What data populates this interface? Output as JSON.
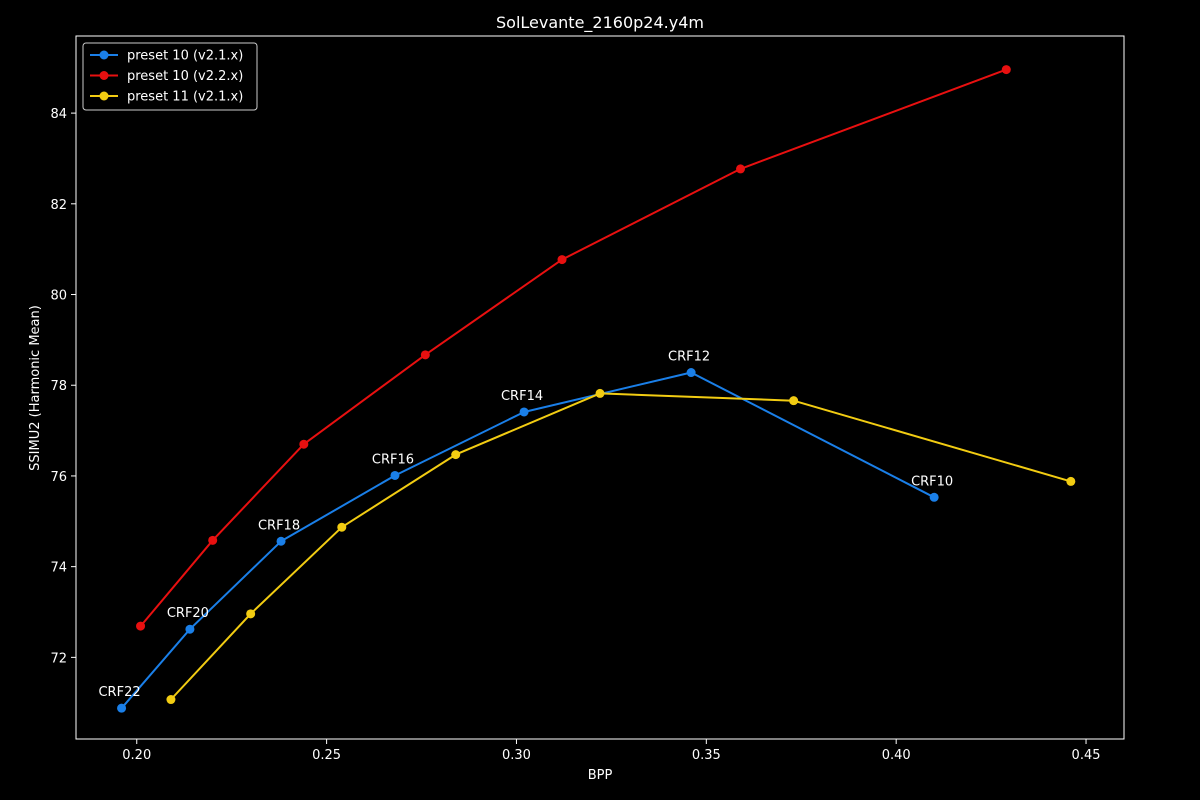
{
  "chart_data": {
    "type": "line",
    "title": "SolLevante_2160p24.y4m",
    "xlabel": "BPP",
    "ylabel": "SSIMU2 (Harmonic Mean)",
    "xlim": [
      0.184,
      0.46
    ],
    "ylim": [
      70.2,
      85.7
    ],
    "x_ticks": [
      0.2,
      0.25,
      0.3,
      0.35,
      0.4,
      0.45
    ],
    "x_tick_labels": [
      "0.20",
      "0.25",
      "0.30",
      "0.35",
      "0.40",
      "0.45"
    ],
    "y_ticks": [
      72,
      74,
      76,
      78,
      80,
      82,
      84
    ],
    "y_tick_labels": [
      "72",
      "74",
      "76",
      "78",
      "80",
      "82",
      "84"
    ],
    "grid": false,
    "legend_position": "top-left",
    "background": "#000000",
    "series": [
      {
        "name": "preset 10 (v2.1.x)",
        "color": "#1a7fe8",
        "points": [
          {
            "x": 0.196,
            "y": 70.88
          },
          {
            "x": 0.214,
            "y": 72.62
          },
          {
            "x": 0.238,
            "y": 74.56
          },
          {
            "x": 0.268,
            "y": 76.01
          },
          {
            "x": 0.302,
            "y": 77.41
          },
          {
            "x": 0.346,
            "y": 78.28
          },
          {
            "x": 0.41,
            "y": 75.53
          }
        ]
      },
      {
        "name": "preset 10 (v2.2.x)",
        "color": "#e81010",
        "points": [
          {
            "x": 0.201,
            "y": 72.69
          },
          {
            "x": 0.22,
            "y": 74.58
          },
          {
            "x": 0.244,
            "y": 76.7
          },
          {
            "x": 0.276,
            "y": 78.67
          },
          {
            "x": 0.312,
            "y": 80.77
          },
          {
            "x": 0.359,
            "y": 82.77
          },
          {
            "x": 0.429,
            "y": 84.96
          }
        ]
      },
      {
        "name": "preset 11 (v2.1.x)",
        "color": "#f2cc12",
        "points": [
          {
            "x": 0.209,
            "y": 71.07
          },
          {
            "x": 0.23,
            "y": 72.96
          },
          {
            "x": 0.254,
            "y": 74.87
          },
          {
            "x": 0.284,
            "y": 76.47
          },
          {
            "x": 0.322,
            "y": 77.82
          },
          {
            "x": 0.373,
            "y": 77.66
          },
          {
            "x": 0.446,
            "y": 75.88
          }
        ]
      }
    ],
    "annotations": [
      {
        "text": "CRF22",
        "x": 0.196,
        "y": 70.88
      },
      {
        "text": "CRF20",
        "x": 0.214,
        "y": 72.62
      },
      {
        "text": "CRF18",
        "x": 0.238,
        "y": 74.56
      },
      {
        "text": "CRF16",
        "x": 0.268,
        "y": 76.01
      },
      {
        "text": "CRF14",
        "x": 0.302,
        "y": 77.41
      },
      {
        "text": "CRF12",
        "x": 0.346,
        "y": 78.28
      },
      {
        "text": "CRF10",
        "x": 0.41,
        "y": 75.53
      }
    ]
  }
}
